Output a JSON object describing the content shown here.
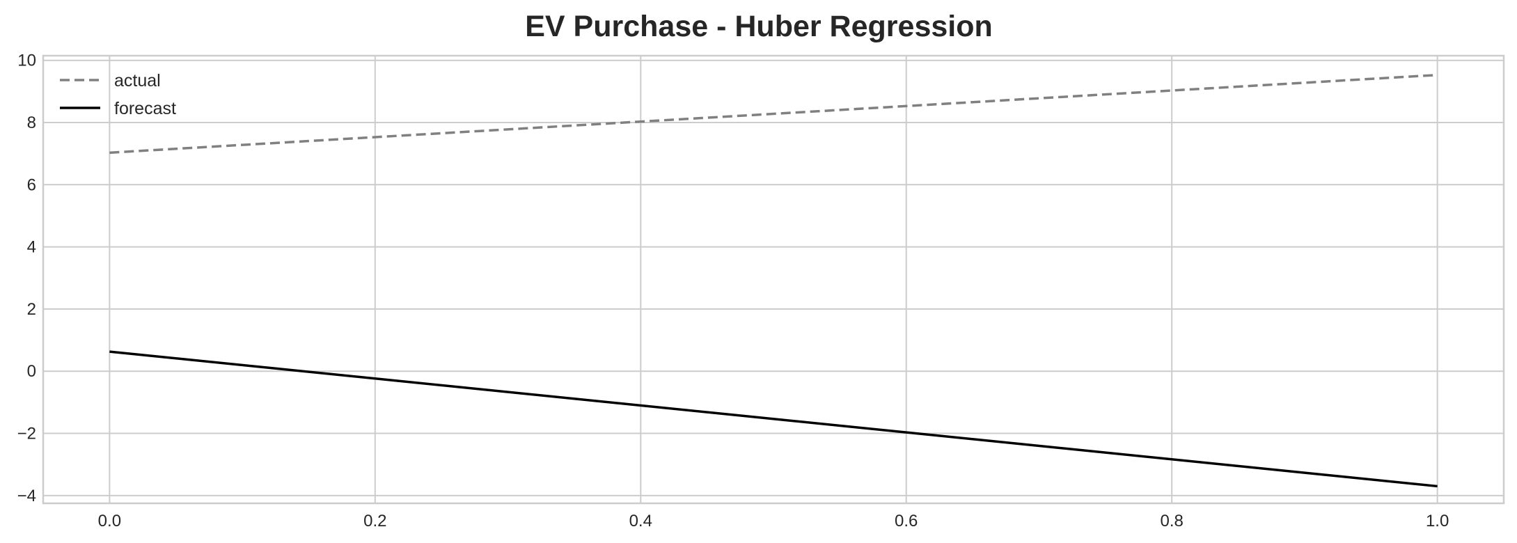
{
  "chart_data": {
    "type": "line",
    "title": "EV Purchase - Huber Regression",
    "xlabel": "",
    "ylabel": "",
    "xlim": [
      -0.05,
      1.05
    ],
    "ylim": [
      -4.25,
      10.15
    ],
    "x_ticks": [
      0.0,
      0.2,
      0.4,
      0.6,
      0.8,
      1.0
    ],
    "x_tick_labels": [
      "0.0",
      "0.2",
      "0.4",
      "0.6",
      "0.8",
      "1.0"
    ],
    "y_ticks": [
      -4,
      -2,
      0,
      2,
      4,
      6,
      8,
      10
    ],
    "y_tick_labels": [
      "−4",
      "−2",
      "0",
      "2",
      "4",
      "6",
      "8",
      "10"
    ],
    "grid": true,
    "legend_position": "top-left",
    "series": [
      {
        "name": "actual",
        "x": [
          0.0,
          1.0
        ],
        "y": [
          7.03,
          9.53
        ],
        "color": "#808080",
        "style": "dashed"
      },
      {
        "name": "forecast",
        "x": [
          0.0,
          1.0
        ],
        "y": [
          0.63,
          -3.7
        ],
        "color": "#000000",
        "style": "solid"
      }
    ]
  }
}
